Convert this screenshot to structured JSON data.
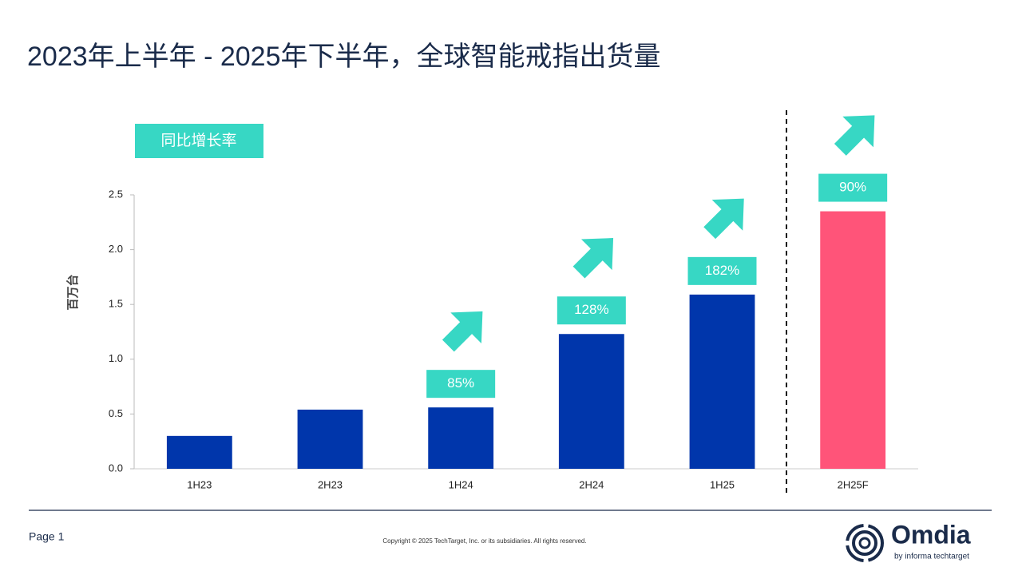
{
  "title": "2023年上半年 - 2025年下半年，全球智能戒指出货量",
  "chart_data": {
    "type": "bar",
    "y_label": "百万台",
    "categories": [
      "1H23",
      "2H23",
      "1H24",
      "2H24",
      "1H25",
      "2H25F"
    ],
    "values": [
      0.3,
      0.54,
      0.56,
      1.23,
      1.59,
      2.35
    ],
    "colors": [
      "#0036ab",
      "#0036ab",
      "#0036ab",
      "#0036ab",
      "#0036ab",
      "#ff5479"
    ],
    "ylim": [
      0,
      2.5
    ],
    "yticks": [
      {
        "value": 0,
        "label": "0.0"
      },
      0.5,
      {
        "value": 1,
        "label": "1.0"
      },
      1.5,
      {
        "value": 2,
        "label": "2.0"
      },
      2.5
    ],
    "growth": {
      "name": "同比增长率",
      "color": "#37d7c4",
      "values": [
        null,
        null,
        85,
        128,
        182,
        90
      ],
      "value_labels": [
        null,
        null,
        "85%",
        "128%",
        "182%",
        "90%"
      ]
    }
  },
  "footer": {
    "page": "Page 1",
    "copyright": "Copyright © 2025 TechTarget, Inc. or its subsidiaries. All rights reserved.",
    "logo": "Omdia",
    "logo_sub": "by informa techtarget"
  }
}
